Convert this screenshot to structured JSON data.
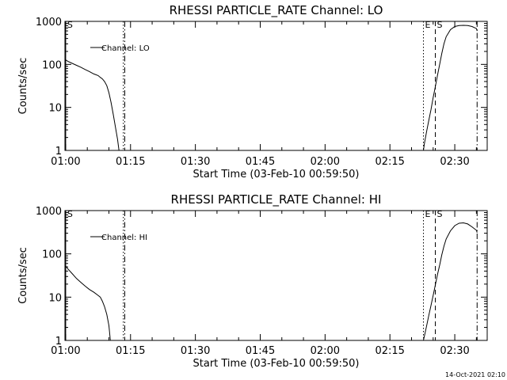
{
  "footer": "14-Oct-2021 02:10",
  "chart_data": [
    {
      "type": "line",
      "title": "RHESSI PARTICLE_RATE Channel: LO",
      "xlabel": "Start Time (03-Feb-10 00:59:50)",
      "ylabel": "Counts/sec",
      "yscale": "log",
      "ylim": [
        1,
        1000
      ],
      "xlim": [
        "00:59:50",
        "02:37:30"
      ],
      "xticks": [
        "01:00",
        "01:15",
        "01:30",
        "01:45",
        "02:00",
        "02:15",
        "02:30"
      ],
      "yticks": [
        "1",
        "10",
        "100",
        "1000"
      ],
      "legend": {
        "label": "Channel: LO",
        "position": "top-left"
      },
      "markers": [
        {
          "label": "S",
          "time": "01:00:00",
          "style": "solid"
        },
        {
          "label": "",
          "time": "01:13:20",
          "style": "dotted"
        },
        {
          "label": "",
          "time": "01:13:40",
          "style": "dashdot"
        },
        {
          "label": "E",
          "time": "02:22:45",
          "style": "dotted"
        },
        {
          "label": "S",
          "time": "02:25:30",
          "style": "dashed"
        },
        {
          "label": "",
          "time": "02:35:10",
          "style": "dashdot"
        }
      ],
      "series": [
        {
          "name": "Channel: LO",
          "segments": [
            [
              [
                "00:59:50",
                130
              ],
              [
                "01:00:30",
                118
              ],
              [
                "01:01:30",
                106
              ],
              [
                "01:02:30",
                95
              ],
              [
                "01:03:30",
                86
              ],
              [
                "01:04:30",
                76
              ],
              [
                "01:05:30",
                68
              ],
              [
                "01:06:30",
                60
              ],
              [
                "01:07:30",
                55
              ],
              [
                "01:08:00",
                50
              ],
              [
                "01:08:30",
                46
              ],
              [
                "01:09:00",
                40
              ],
              [
                "01:09:30",
                32
              ],
              [
                "01:10:00",
                22
              ],
              [
                "01:10:30",
                13
              ],
              [
                "01:11:00",
                7
              ],
              [
                "01:11:30",
                3.5
              ],
              [
                "01:12:00",
                1.8
              ],
              [
                "01:12:20",
                1
              ]
            ],
            [
              [
                "02:22:45",
                1
              ],
              [
                "02:23:00",
                1.5
              ],
              [
                "02:23:30",
                2.8
              ],
              [
                "02:24:00",
                5
              ],
              [
                "02:24:30",
                9
              ],
              [
                "02:25:00",
                17
              ],
              [
                "02:25:30",
                30
              ],
              [
                "02:26:00",
                55
              ],
              [
                "02:26:30",
                100
              ],
              [
                "02:27:00",
                180
              ],
              [
                "02:27:30",
                300
              ],
              [
                "02:28:00",
                440
              ],
              [
                "02:29:00",
                640
              ],
              [
                "02:30:00",
                760
              ],
              [
                "02:31:00",
                800
              ],
              [
                "02:32:00",
                810
              ],
              [
                "02:33:00",
                800
              ],
              [
                "02:34:00",
                760
              ],
              [
                "02:35:00",
                680
              ],
              [
                "02:35:10",
                600
              ]
            ]
          ]
        }
      ]
    },
    {
      "type": "line",
      "title": "RHESSI PARTICLE_RATE Channel: HI",
      "xlabel": "Start Time (03-Feb-10 00:59:50)",
      "ylabel": "Counts/sec",
      "yscale": "log",
      "ylim": [
        1,
        1000
      ],
      "xlim": [
        "00:59:50",
        "02:37:30"
      ],
      "xticks": [
        "01:00",
        "01:15",
        "01:30",
        "01:45",
        "02:00",
        "02:15",
        "02:30"
      ],
      "yticks": [
        "1",
        "10",
        "100",
        "1000"
      ],
      "legend": {
        "label": "Channel: HI",
        "position": "top-left"
      },
      "markers": [
        {
          "label": "S",
          "time": "01:00:00",
          "style": "solid"
        },
        {
          "label": "",
          "time": "01:13:20",
          "style": "dotted"
        },
        {
          "label": "",
          "time": "01:13:40",
          "style": "dashdot"
        },
        {
          "label": "E",
          "time": "02:22:45",
          "style": "dotted"
        },
        {
          "label": "S",
          "time": "02:25:30",
          "style": "dashed"
        },
        {
          "label": "",
          "time": "02:35:10",
          "style": "dashdot"
        }
      ],
      "series": [
        {
          "name": "Channel: HI",
          "segments": [
            [
              [
                "00:59:50",
                55
              ],
              [
                "01:00:30",
                45
              ],
              [
                "01:01:30",
                35
              ],
              [
                "01:02:30",
                27
              ],
              [
                "01:03:30",
                22
              ],
              [
                "01:04:30",
                18
              ],
              [
                "01:05:30",
                15
              ],
              [
                "01:06:30",
                13
              ],
              [
                "01:07:30",
                11
              ],
              [
                "01:08:00",
                10
              ],
              [
                "01:08:30",
                8
              ],
              [
                "01:09:00",
                6
              ],
              [
                "01:09:30",
                4
              ],
              [
                "01:10:00",
                2.2
              ],
              [
                "01:10:20",
                1
              ]
            ],
            [
              [
                "02:22:45",
                1
              ],
              [
                "02:23:00",
                1.3
              ],
              [
                "02:23:30",
                2.2
              ],
              [
                "02:24:00",
                3.8
              ],
              [
                "02:24:30",
                6.5
              ],
              [
                "02:25:00",
                11
              ],
              [
                "02:25:30",
                19
              ],
              [
                "02:26:00",
                33
              ],
              [
                "02:26:30",
                55
              ],
              [
                "02:27:00",
                95
              ],
              [
                "02:27:30",
                150
              ],
              [
                "02:28:00",
                220
              ],
              [
                "02:29:00",
                340
              ],
              [
                "02:30:00",
                450
              ],
              [
                "02:31:00",
                510
              ],
              [
                "02:32:00",
                520
              ],
              [
                "02:33:00",
                490
              ],
              [
                "02:34:00",
                420
              ],
              [
                "02:35:00",
                350
              ],
              [
                "02:35:10",
                310
              ]
            ]
          ]
        }
      ]
    }
  ]
}
